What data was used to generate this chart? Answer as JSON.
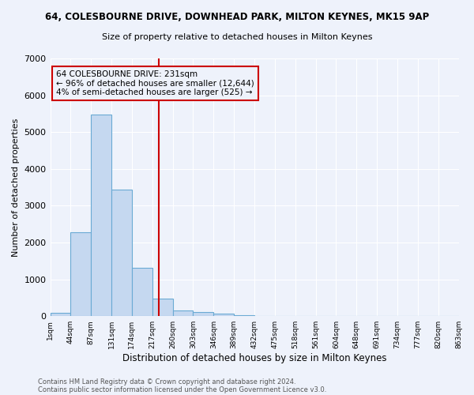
{
  "title1": "64, COLESBOURNE DRIVE, DOWNHEAD PARK, MILTON KEYNES, MK15 9AP",
  "title2": "Size of property relative to detached houses in Milton Keynes",
  "xlabel": "Distribution of detached houses by size in Milton Keynes",
  "ylabel": "Number of detached properties",
  "bin_labels": [
    "1sqm",
    "44sqm",
    "87sqm",
    "131sqm",
    "174sqm",
    "217sqm",
    "260sqm",
    "303sqm",
    "346sqm",
    "389sqm",
    "432sqm",
    "475sqm",
    "518sqm",
    "561sqm",
    "604sqm",
    "648sqm",
    "691sqm",
    "734sqm",
    "777sqm",
    "820sqm",
    "863sqm"
  ],
  "bar_heights": [
    80,
    2280,
    5470,
    3440,
    1310,
    470,
    150,
    110,
    65,
    30,
    0,
    0,
    0,
    0,
    0,
    0,
    0,
    0,
    0,
    0
  ],
  "bar_color": "#c5d8f0",
  "bar_edgecolor": "#6aaad4",
  "vline_color": "#cc0000",
  "annotation_text": "64 COLESBOURNE DRIVE: 231sqm\n← 96% of detached houses are smaller (12,644)\n4% of semi-detached houses are larger (525) →",
  "annotation_box_color": "#cc0000",
  "ylim": [
    0,
    7000
  ],
  "yticks": [
    0,
    1000,
    2000,
    3000,
    4000,
    5000,
    6000,
    7000
  ],
  "footnote1": "Contains HM Land Registry data © Crown copyright and database right 2024.",
  "footnote2": "Contains public sector information licensed under the Open Government Licence v3.0.",
  "background_color": "#eef2fb",
  "grid_color": "#ffffff"
}
